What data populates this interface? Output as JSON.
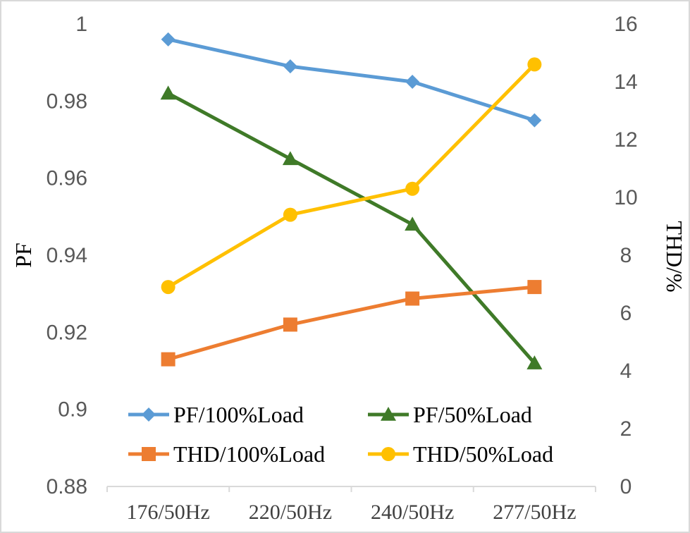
{
  "chart_data": {
    "type": "line",
    "title": "",
    "categories": [
      "176/50Hz",
      "220/50Hz",
      "240/50Hz",
      "277/50Hz"
    ],
    "y_left": {
      "label": "PF",
      "ylim": [
        0.88,
        1.0
      ],
      "ticks": [
        "0.88",
        "0.9",
        "0.92",
        "0.94",
        "0.96",
        "0.98",
        "1"
      ]
    },
    "y_right": {
      "label": "THD/%",
      "ylim": [
        0,
        16
      ],
      "ticks": [
        "0",
        "2",
        "4",
        "6",
        "8",
        "10",
        "12",
        "14",
        "16"
      ]
    },
    "grid": false,
    "legend_position": "bottom-inside",
    "series": [
      {
        "name": "PF/100%Load",
        "axis": "left",
        "color": "#5b9bd5",
        "marker": "diamond",
        "values": [
          0.996,
          0.989,
          0.985,
          0.975
        ]
      },
      {
        "name": "PF/50%Load",
        "axis": "left",
        "color": "#3f7a28",
        "marker": "triangle",
        "values": [
          0.982,
          0.965,
          0.948,
          0.912
        ]
      },
      {
        "name": "THD/100%Load",
        "axis": "right",
        "color": "#ed7d31",
        "marker": "square",
        "values": [
          4.4,
          5.6,
          6.5,
          6.9
        ]
      },
      {
        "name": "THD/50%Load",
        "axis": "right",
        "color": "#ffc000",
        "marker": "circle",
        "values": [
          6.9,
          9.4,
          10.3,
          14.6
        ]
      }
    ]
  }
}
